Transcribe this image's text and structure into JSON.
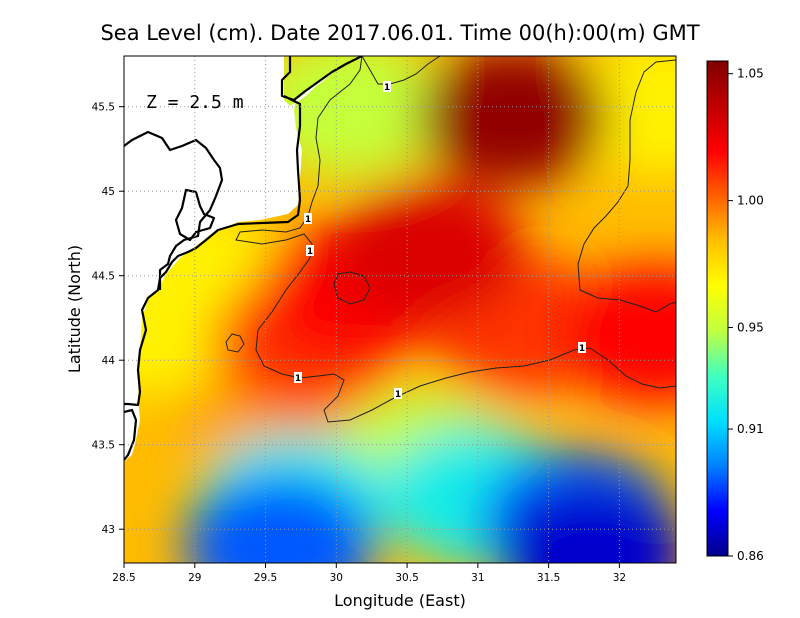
{
  "title": "Sea Level (cm). Date 2017.06.01. Time 00(h):00(m) GMT",
  "depth_label": "Z = 2.5 m",
  "x_axis": {
    "label": "Longitude (East)",
    "range": [
      28.5,
      32.4
    ],
    "ticks": [
      {
        "value": 28.5,
        "label": "28.5"
      },
      {
        "value": 29,
        "label": "29"
      },
      {
        "value": 29.5,
        "label": "29.5"
      },
      {
        "value": 30,
        "label": "30"
      },
      {
        "value": 30.5,
        "label": "30.5"
      },
      {
        "value": 31,
        "label": "31"
      },
      {
        "value": 31.5,
        "label": "31.5"
      },
      {
        "value": 32,
        "label": "32"
      }
    ]
  },
  "y_axis": {
    "label": "Latitude (North)",
    "range": [
      42.8,
      45.8
    ],
    "ticks": [
      {
        "value": 43,
        "label": "43"
      },
      {
        "value": 43.5,
        "label": "43.5"
      },
      {
        "value": 44,
        "label": "44"
      },
      {
        "value": 44.5,
        "label": "44.5"
      },
      {
        "value": 45,
        "label": "45"
      },
      {
        "value": 45.5,
        "label": "45.5"
      }
    ]
  },
  "colorbar": {
    "min": 0.86,
    "max": 1.055,
    "ticks": [
      {
        "value": 1.05,
        "label": "1.05"
      },
      {
        "value": 1.0,
        "label": "1.00"
      },
      {
        "value": 0.95,
        "label": "0.95"
      },
      {
        "value": 0.91,
        "label": "0.91"
      },
      {
        "value": 0.86,
        "label": "0.86"
      }
    ],
    "colors": [
      "#00008c",
      "#0000ff",
      "#0080ff",
      "#00e0ff",
      "#40ffc0",
      "#c0ff40",
      "#ffff00",
      "#ffc000",
      "#ff6000",
      "#ff0000",
      "#c00000",
      "#800000"
    ]
  },
  "contour_label": "1",
  "colors": {
    "coast": "#000000",
    "land": "#ffffff",
    "grid": "#999999",
    "contour": "#222222"
  },
  "chart_data": {
    "type": "heatmap",
    "variable": "sea level",
    "units": "cm",
    "grid": "on",
    "contour_level": 1,
    "field_extent": {
      "lon": [
        28.5,
        32.4
      ],
      "lat": [
        42.8,
        45.8
      ]
    },
    "field_features": [
      {
        "lon": 31.25,
        "lat": 45.45,
        "value": 1.05
      },
      {
        "lon": 30.65,
        "lat": 44.65,
        "value": 1.03
      },
      {
        "lon": 32.25,
        "lat": 44.15,
        "value": 1.02
      },
      {
        "lon": 30.1,
        "lat": 44.4,
        "value": 1.02
      },
      {
        "lon": 29.8,
        "lat": 44.1,
        "value": 1.01
      },
      {
        "lon": 31.3,
        "lat": 44.2,
        "value": 1.01
      },
      {
        "lon": 29.5,
        "lat": 43.8,
        "value": 0.99
      },
      {
        "lon": 29.0,
        "lat": 44.5,
        "value": 0.97
      },
      {
        "lon": 32.3,
        "lat": 45.5,
        "value": 0.97
      },
      {
        "lon": 30.1,
        "lat": 45.5,
        "value": 0.95
      },
      {
        "lon": 28.7,
        "lat": 44.2,
        "value": 0.97
      },
      {
        "lon": 30.6,
        "lat": 43.4,
        "value": 0.95
      },
      {
        "lon": 29.7,
        "lat": 43.15,
        "value": 0.92
      },
      {
        "lon": 31.0,
        "lat": 43.2,
        "value": 0.92
      },
      {
        "lon": 29.6,
        "lat": 42.9,
        "value": 0.89
      },
      {
        "lon": 31.7,
        "lat": 43.05,
        "value": 0.89
      },
      {
        "lon": 31.8,
        "lat": 42.85,
        "value": 0.87
      }
    ]
  }
}
